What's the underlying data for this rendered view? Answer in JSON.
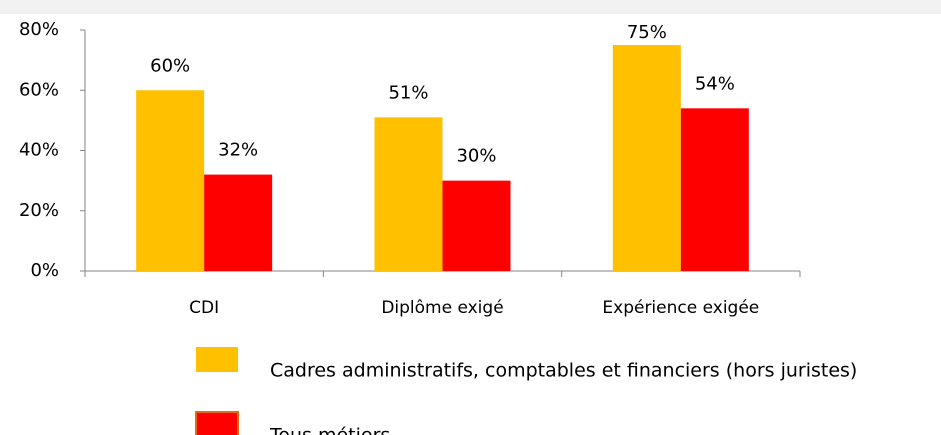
{
  "chart_data": {
    "type": "bar",
    "categories": [
      "CDI",
      "Diplôme exigé",
      "Expérience exigée"
    ],
    "series": [
      {
        "name": "Cadres administratifs, comptables et financiers (hors juristes)",
        "color": "#ffc000",
        "values": [
          60,
          51,
          75
        ],
        "value_labels": [
          "60%",
          "51%",
          "75%"
        ]
      },
      {
        "name": "Tous métiers",
        "color": "#ff0000",
        "values": [
          32,
          30,
          54
        ],
        "value_labels": [
          "32%",
          "30%",
          "54%"
        ]
      }
    ],
    "ylim": [
      0,
      80
    ],
    "yticks": [
      {
        "value": 0,
        "label": "0%"
      },
      {
        "value": 20,
        "label": "20%"
      },
      {
        "value": 40,
        "label": "40%"
      },
      {
        "value": 60,
        "label": "60%"
      },
      {
        "value": 80,
        "label": "80%"
      }
    ],
    "grid": false,
    "legend": "bottom"
  }
}
